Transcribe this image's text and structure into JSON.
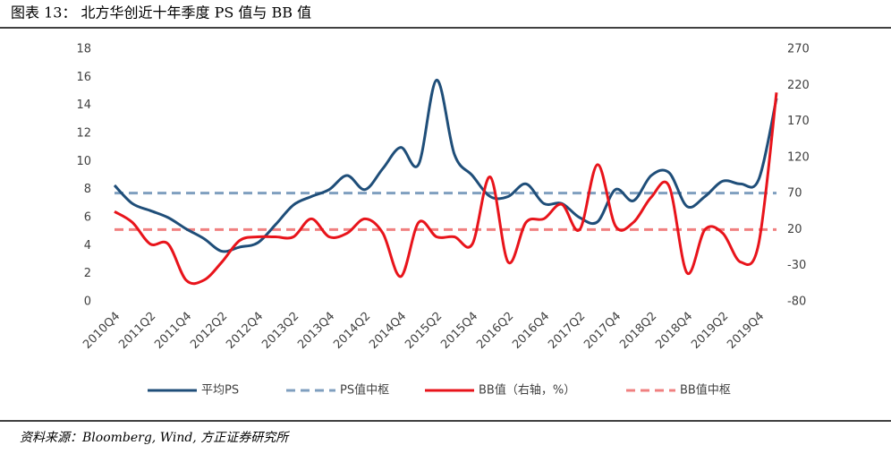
{
  "chart_data": {
    "type": "line",
    "title": "图表 13： 北方华创近十年季度 PS 值与 BB 值",
    "source": "资料来源：Bloomberg, Wind, 方正证券研究所",
    "categories": [
      "2010Q4",
      null,
      "2011Q2",
      null,
      "2011Q4",
      null,
      "2012Q2",
      null,
      "2012Q4",
      null,
      "2013Q2",
      null,
      "2013Q4",
      null,
      "2014Q2",
      null,
      "2014Q4",
      null,
      "2015Q2",
      null,
      "2015Q4",
      null,
      "2016Q2",
      null,
      "2016Q4",
      null,
      "2017Q2",
      null,
      "2017Q4",
      null,
      "2018Q2",
      null,
      "2018Q4",
      null,
      "2019Q2",
      null,
      "2019Q4",
      null
    ],
    "series": [
      {
        "name": "平均PS",
        "color": "#1f4e79",
        "axis": "y",
        "values": [
          8.3,
          7.0,
          6.5,
          6.0,
          5.2,
          4.5,
          3.6,
          3.9,
          4.2,
          5.5,
          6.9,
          7.5,
          8.0,
          9.0,
          8.0,
          9.5,
          11.0,
          9.8,
          15.8,
          10.5,
          9.0,
          7.5,
          7.5,
          8.4,
          7.0,
          7.0,
          6.0,
          5.7,
          8.0,
          7.2,
          9.0,
          9.2,
          6.8,
          7.5,
          8.6,
          8.4,
          8.7,
          14.5
        ]
      },
      {
        "name": "BB值（右轴，%）",
        "color": "#e8141b",
        "axis": "y2",
        "values": [
          45,
          30,
          0,
          0,
          -50,
          -50,
          -25,
          5,
          10,
          10,
          10,
          35,
          10,
          15,
          35,
          15,
          -45,
          30,
          10,
          10,
          0,
          93,
          -25,
          30,
          35,
          55,
          20,
          110,
          25,
          30,
          65,
          80,
          -40,
          20,
          15,
          -25,
          0,
          210
        ]
      }
    ],
    "reference_lines": [
      {
        "name": "PS值中枢",
        "value": 7.75,
        "color": "#7f9fbf",
        "axis": "y"
      },
      {
        "name": "BB值中枢",
        "value": 20,
        "color": "#f08080",
        "axis": "y2"
      }
    ],
    "ylim": [
      0,
      18
    ],
    "yticks": [
      0,
      2,
      4,
      6,
      8,
      10,
      12,
      14,
      16,
      18
    ],
    "y2lim": [
      -80,
      270
    ],
    "y2ticks": [
      -80,
      -30,
      20,
      70,
      120,
      170,
      220,
      270
    ],
    "legend": "bottom"
  }
}
